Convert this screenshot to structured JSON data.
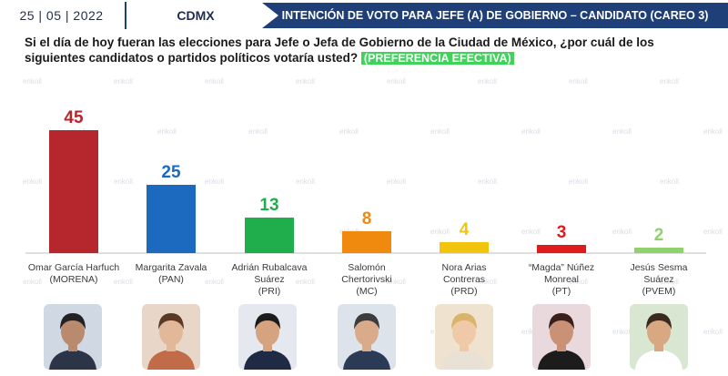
{
  "header": {
    "date": "25 | 05 | 2022",
    "region": "CDMX",
    "title": "INTENCIÓN DE VOTO PARA JEFE (A) DE GOBIERNO – CANDIDATO (CAREO 3)"
  },
  "question": {
    "text": "Si el día de hoy fueran las elecciones para Jefe o Jefa de Gobierno de la Ciudad de México, ¿por cuál de los siguientes candidatos o partidos políticos votaría usted?",
    "badge": "(PREFERENCIA EFECTIVA)"
  },
  "watermark": "enkoll",
  "chart_data": {
    "type": "bar",
    "ylim": [
      0,
      50
    ],
    "grid": false,
    "categories": [
      [
        "Omar García Harfuch",
        "(MORENA)"
      ],
      [
        "Margarita  Zavala",
        "(PAN)"
      ],
      [
        "Adrián Rubalcava",
        "Suárez",
        "(PRI)"
      ],
      [
        "Salomón",
        "Chertorivski",
        "(MC)"
      ],
      [
        "Nora Arias",
        "Contreras",
        "(PRD)"
      ],
      [
        "“Magda” Núñez",
        "Monreal",
        "(PT)"
      ],
      [
        "Jesús Sesma",
        "Suárez",
        "(PVEM)"
      ]
    ],
    "values": [
      45,
      25,
      13,
      8,
      4,
      3,
      2
    ],
    "colors": [
      "#b5262d",
      "#1c6ac0",
      "#1fae4b",
      "#f08a0e",
      "#f2c40d",
      "#e01b1b",
      "#8fd16a"
    ]
  },
  "photos": [
    {
      "bg": "#cfd8e3",
      "skin": "#b98a6e",
      "hair": "#222222",
      "suit": "#2c3447"
    },
    {
      "bg": "#e8d7c8",
      "skin": "#e2b89b",
      "hair": "#5a3a24",
      "suit": "#c26b48"
    },
    {
      "bg": "#e5e9ef",
      "skin": "#d5a37f",
      "hair": "#1c1c1c",
      "suit": "#1f2a44"
    },
    {
      "bg": "#dde3ea",
      "skin": "#d9ab8b",
      "hair": "#3c3c3c",
      "suit": "#2b3a55"
    },
    {
      "bg": "#efe3cf",
      "skin": "#f0c9a8",
      "hair": "#d9b46a",
      "suit": "#e9e2d4"
    },
    {
      "bg": "#e9d9dc",
      "skin": "#c99276",
      "hair": "#3a1f1a",
      "suit": "#1c1c1c"
    },
    {
      "bg": "#d9e7d2",
      "skin": "#d8a883",
      "hair": "#3b2a1f",
      "suit": "#ffffff"
    }
  ]
}
